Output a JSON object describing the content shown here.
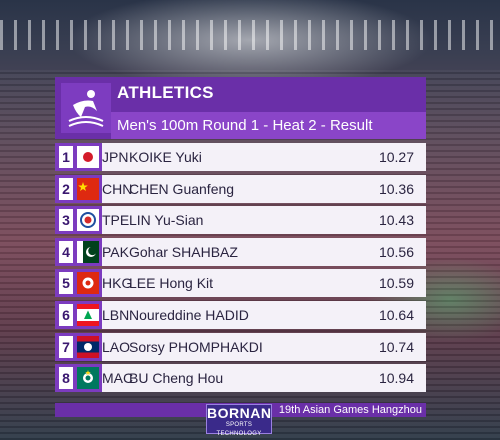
{
  "header": {
    "sport": "ATHLETICS",
    "event": "Men's 100m Round 1 - Heat 2 - Result"
  },
  "results": [
    {
      "rank": "1",
      "noc": "JPN",
      "name": "KOIKE Yuki",
      "time": "10.27",
      "flag_icon": "japan-flag-icon"
    },
    {
      "rank": "2",
      "noc": "CHN",
      "name": "CHEN Guanfeng",
      "time": "10.36",
      "flag_icon": "china-flag-icon"
    },
    {
      "rank": "3",
      "noc": "TPE",
      "name": "LIN Yu-Sian",
      "time": "10.43",
      "flag_icon": "chinese-taipei-flag-icon"
    },
    {
      "rank": "4",
      "noc": "PAK",
      "name": "Gohar SHAHBAZ",
      "time": "10.56",
      "flag_icon": "pakistan-flag-icon"
    },
    {
      "rank": "5",
      "noc": "HKG",
      "name": "LEE Hong Kit",
      "time": "10.59",
      "flag_icon": "hong-kong-flag-icon"
    },
    {
      "rank": "6",
      "noc": "LBN",
      "name": "Noureddine HADID",
      "time": "10.64",
      "flag_icon": "lebanon-flag-icon"
    },
    {
      "rank": "7",
      "noc": "LAO",
      "name": "Sorsy PHOMPHAKDI",
      "time": "10.74",
      "flag_icon": "laos-flag-icon"
    },
    {
      "rank": "8",
      "noc": "MAC",
      "name": "BU Cheng Hou",
      "time": "10.94",
      "flag_icon": "macau-flag-icon"
    }
  ],
  "footer": {
    "games": "19th Asian Games Hangzhou"
  },
  "sponsor": {
    "name": "BORNAN",
    "tagline": "SPORTS TECHNOLOGY"
  },
  "colors": {
    "brand_purple": "#6a2fa8",
    "event_bar": "#8a45c8",
    "row_bg": "#f4f1f8"
  }
}
